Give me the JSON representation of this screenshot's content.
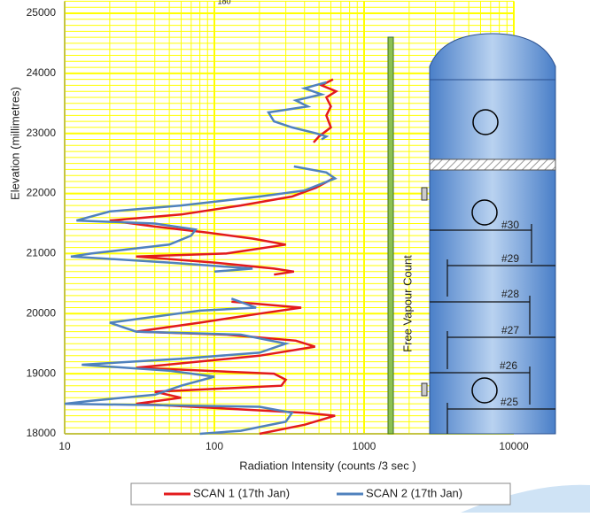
{
  "chart_data": {
    "type": "line",
    "x_label": "Radiation Intensity (counts /3 sec )",
    "y_label": "Elevation (millimetres)",
    "annotation": "Free Vapour Count",
    "top_label": "180",
    "tray_labels": [
      "#30",
      "#29",
      "#28",
      "#27",
      "#26",
      "#25"
    ],
    "xlim": [
      10,
      10000
    ],
    "ylim": [
      18000,
      25200
    ],
    "xticks": [
      10,
      100,
      1000,
      10000
    ],
    "yticks": [
      18000,
      19000,
      20000,
      21000,
      22000,
      23000,
      24000,
      25000
    ],
    "log_x": true,
    "grid": true,
    "grid_color": "#ffff00",
    "legend": "bottom",
    "series": [
      {
        "name": "SCAN 1 (17th Jan)",
        "color": "#e31a1c",
        "x": [
          620,
          520,
          650,
          560,
          600,
          560,
          600,
          500,
          460,
          null,
          620,
          480,
          330,
          150,
          60,
          20,
          40,
          90,
          180,
          300,
          120,
          30,
          100,
          250,
          340,
          250,
          null,
          130,
          380,
          200,
          80,
          30,
          120,
          350,
          470,
          200,
          30,
          250,
          300,
          280,
          40,
          60,
          30,
          400,
          640,
          400,
          200
        ],
        "y": [
          23900,
          23800,
          23700,
          23600,
          23450,
          23300,
          23100,
          22950,
          22850,
          null,
          22250,
          22100,
          21950,
          21800,
          21650,
          21550,
          21450,
          21350,
          21250,
          21150,
          21000,
          20950,
          20850,
          20750,
          20700,
          20650,
          null,
          20200,
          20100,
          20000,
          19850,
          19700,
          19650,
          19550,
          19450,
          19300,
          19100,
          19000,
          18900,
          18800,
          18700,
          18600,
          18500,
          18350,
          18300,
          18150,
          18000
        ]
      },
      {
        "name": "SCAN 2 (17th Jan)",
        "color": "#4f81bd",
        "x": [
          560,
          470,
          400,
          520,
          350,
          420,
          230,
          250,
          330,
          480,
          560,
          520,
          null,
          340,
          560,
          640,
          400,
          200,
          60,
          20,
          12,
          40,
          75,
          70,
          50,
          15,
          11,
          50,
          180,
          100,
          null,
          130,
          190,
          80,
          20,
          30,
          150,
          300,
          200,
          60,
          13,
          50,
          100,
          60,
          40,
          15,
          10,
          200,
          330,
          300,
          150,
          80
        ],
        "y": [
          23850,
          23800,
          23750,
          23650,
          23550,
          23450,
          23350,
          23200,
          23100,
          23000,
          22950,
          22900,
          null,
          22450,
          22350,
          22250,
          22050,
          21950,
          21800,
          21700,
          21550,
          21500,
          21400,
          21300,
          21150,
          21000,
          20950,
          20850,
          20750,
          20700,
          null,
          20250,
          20100,
          20050,
          19850,
          19700,
          19650,
          19500,
          19350,
          19250,
          19150,
          19050,
          18950,
          18800,
          18650,
          18550,
          18500,
          18450,
          18350,
          18200,
          18050,
          18000
        ]
      }
    ]
  }
}
